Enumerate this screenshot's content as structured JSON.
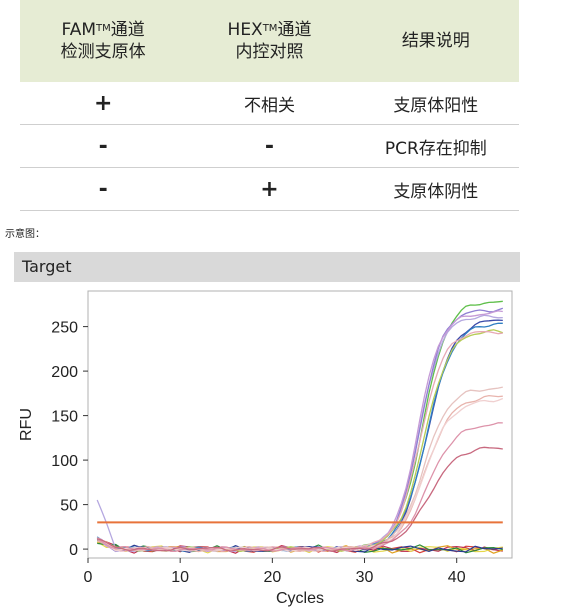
{
  "table": {
    "headers": [
      {
        "line1_main": "FAM",
        "line1_sup": "TM",
        "line1_tail": "通道",
        "line2": "检测支原体"
      },
      {
        "line1_main": "HEX",
        "line1_sup": "TM",
        "line1_tail": "通道",
        "line2": "内控对照"
      },
      {
        "line1_main": "结果说明",
        "line1_sup": "",
        "line1_tail": "",
        "line2": ""
      }
    ],
    "rows": [
      [
        "+",
        "不相关",
        "支原体阳性"
      ],
      [
        "-",
        "-",
        "PCR存在抑制"
      ],
      [
        "-",
        "+",
        "支原体阴性"
      ]
    ]
  },
  "caption": "示意图：",
  "chart_header": "Target",
  "colors": {
    "threshold": "#e8733a",
    "table_header_bg": "#e6ecd4",
    "panel_bg": "#d9d9d9"
  },
  "chart_data": {
    "type": "line",
    "xlabel": "Cycles",
    "ylabel": "RFU",
    "xlim": [
      0,
      46
    ],
    "ylim": [
      -10,
      290
    ],
    "xticks": [
      0,
      10,
      20,
      30,
      40
    ],
    "yticks": [
      0,
      50,
      100,
      150,
      200,
      250
    ],
    "threshold": 30,
    "grid": false,
    "positive_curves": [
      {
        "color": "#5fbf4a",
        "plateau": 278,
        "midpoint": 36.3,
        "slope": 0.75
      },
      {
        "color": "#b5a8e0",
        "plateau": 262,
        "midpoint": 35.9,
        "slope": 0.8
      },
      {
        "color": "#8f7fd3",
        "plateau": 270,
        "midpoint": 36.0,
        "slope": 0.78
      },
      {
        "color": "#c59ad6",
        "plateau": 266,
        "midpoint": 35.8,
        "slope": 0.8
      },
      {
        "color": "#3a4aa8",
        "plateau": 258,
        "midpoint": 36.8,
        "slope": 0.72
      },
      {
        "color": "#2f7fc2",
        "plateau": 253,
        "midpoint": 36.7,
        "slope": 0.72
      },
      {
        "color": "#b7cc55",
        "plateau": 245,
        "midpoint": 36.4,
        "slope": 0.74
      },
      {
        "color": "#e7a9b5",
        "plateau": 245,
        "midpoint": 36.0,
        "slope": 0.76
      },
      {
        "color": "#e6c3c0",
        "plateau": 182,
        "midpoint": 36.4,
        "slope": 0.7
      },
      {
        "color": "#e8b4ad",
        "plateau": 173,
        "midpoint": 36.6,
        "slope": 0.68
      },
      {
        "color": "#f0d0d0",
        "plateau": 168,
        "midpoint": 36.5,
        "slope": 0.7
      },
      {
        "color": "#dd93aa",
        "plateau": 140,
        "midpoint": 36.8,
        "slope": 0.7
      },
      {
        "color": "#c8697f",
        "plateau": 114,
        "midpoint": 36.8,
        "slope": 0.66
      }
    ],
    "negative_curves": [
      {
        "color": "#d8403a",
        "phase": 0.0
      },
      {
        "color": "#c03050",
        "phase": 1.3
      },
      {
        "color": "#e0a020",
        "phase": 2.1
      },
      {
        "color": "#e6d84a",
        "phase": 3.4
      },
      {
        "color": "#2c8a3a",
        "phase": 4.2
      },
      {
        "color": "#2a3a90",
        "phase": 5.0
      }
    ]
  }
}
